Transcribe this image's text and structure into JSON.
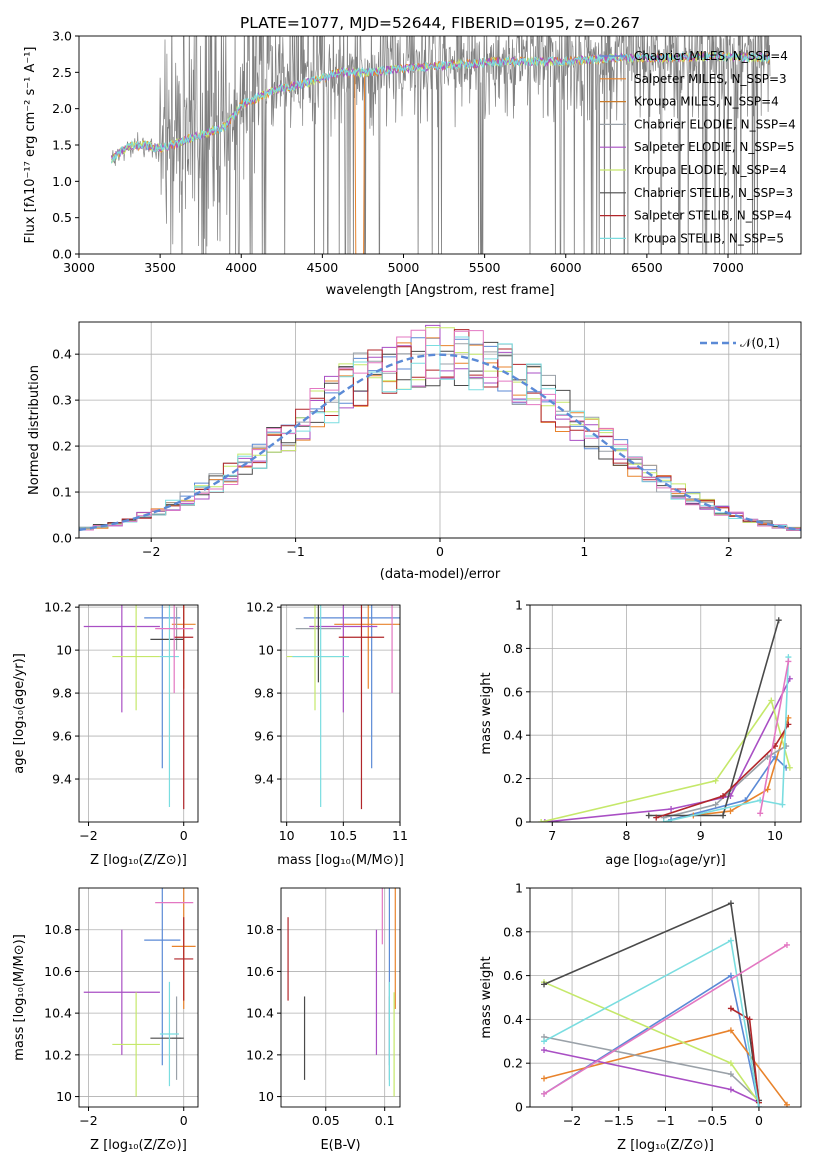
{
  "colors": {
    "chabrier_miles": "#5b8ad6",
    "salpeter_miles": "#e8832c",
    "kroupa_miles": "#c87a2a",
    "chabrier_elodie": "#9aa1a8",
    "salpeter_elodie": "#a94fc4",
    "kroupa_elodie": "#c5e86a",
    "chabrier_stelib": "#4a4a4a",
    "salpeter_stelib": "#b1262a",
    "kroupa_stelib": "#7adde0",
    "gauss": "#5b8ad6",
    "pink": "#e377c2",
    "spectrum": "#7f7f7f",
    "grid": "#b0b0b0"
  },
  "chart_data": [
    {
      "type": "line",
      "title": "PLATE=1077, MJD=52644, FIBERID=0195, z=0.267",
      "xlabel": "wavelength [Angstrom, rest frame]",
      "ylabel": "Flux [fλ10⁻¹⁷ erg cm⁻² s⁻¹ A⁻¹]",
      "xlim": [
        3000,
        7450
      ],
      "ylim": [
        0,
        3.0
      ],
      "xticks": [
        3000,
        3500,
        4000,
        4500,
        5000,
        5500,
        6000,
        6500,
        7000
      ],
      "yticks": [
        0.0,
        0.5,
        1.0,
        1.5,
        2.0,
        2.5,
        3.0
      ],
      "grid": false,
      "legend_position": "top-right",
      "series": [
        {
          "name": "Chabrier MILES, N_SSP=4"
        },
        {
          "name": "Salpeter MILES, N_SSP=3"
        },
        {
          "name": "Kroupa MILES, N_SSP=4"
        },
        {
          "name": "Chabrier ELODIE, N_SSP=4"
        },
        {
          "name": "Salpeter ELODIE, N_SSP=5"
        },
        {
          "name": "Kroupa ELODIE, N_SSP=4"
        },
        {
          "name": "Chabrier STELIB, N_SSP=3"
        },
        {
          "name": "Salpeter STELIB, N_SSP=4"
        },
        {
          "name": "Kroupa STELIB, N_SSP=5"
        }
      ],
      "continuum": {
        "x": [
          3200,
          3300,
          3400,
          3500,
          3700,
          3900,
          4000,
          4200,
          4400,
          4600,
          4800,
          5000,
          5300,
          5600,
          6000,
          6300,
          6600,
          6900,
          7250
        ],
        "y": [
          1.3,
          1.48,
          1.5,
          1.45,
          1.6,
          1.75,
          2.05,
          2.25,
          2.35,
          2.5,
          2.5,
          2.55,
          2.6,
          2.65,
          2.65,
          2.7,
          2.7,
          2.72,
          2.7
        ]
      }
    },
    {
      "type": "line",
      "xlabel": "(data-model)/error",
      "ylabel": "Normed distribution",
      "xlim": [
        -2.5,
        2.5
      ],
      "ylim": [
        0,
        0.47
      ],
      "xticks": [
        -2,
        -1,
        0,
        1,
        2
      ],
      "yticks": [
        0.0,
        0.1,
        0.2,
        0.3,
        0.4
      ],
      "grid": true,
      "legend_position": "top-right",
      "gauss_label": "𝒩(0,1)",
      "bin_width": 0.1
    },
    {
      "type": "scatter",
      "xlabel": "Z [log₁₀(Z/Z⊙)]",
      "ylabel": "age  [log₁₀(age/yr)]",
      "xlim": [
        -2.2,
        0.3
      ],
      "ylim": [
        9.2,
        10.21
      ],
      "xticks": [
        -2,
        0
      ],
      "yticks": [
        9.4,
        9.6,
        9.8,
        10.0,
        10.2
      ],
      "grid": true
    },
    {
      "type": "scatter",
      "xlabel": "mass [log₁₀(M/M⊙)]",
      "xlim": [
        9.95,
        11.0
      ],
      "ylim": [
        9.2,
        10.21
      ],
      "xticks": [
        10.0,
        10.5,
        11.0
      ],
      "yticks": [
        9.4,
        9.6,
        9.8,
        10.0,
        10.2
      ],
      "grid": true
    },
    {
      "type": "line",
      "xlabel": "age  [log₁₀(age/yr)]",
      "ylabel": "mass weight",
      "xlim": [
        6.7,
        10.35
      ],
      "ylim": [
        0,
        1.0
      ],
      "xticks": [
        7,
        8,
        9,
        10
      ],
      "yticks": [
        0.0,
        0.2,
        0.4,
        0.6,
        0.8,
        1.0
      ],
      "grid": true
    },
    {
      "type": "scatter",
      "xlabel": "Z [log₁₀(Z/Z⊙)]",
      "ylabel": "mass [log₁₀(M/M⊙)]",
      "xlim": [
        -2.2,
        0.3
      ],
      "ylim": [
        9.95,
        11.0
      ],
      "xticks": [
        -2,
        0
      ],
      "yticks": [
        10.0,
        10.2,
        10.4,
        10.6,
        10.8
      ],
      "grid": true
    },
    {
      "type": "scatter",
      "xlabel": "E(B-V)",
      "xlim": [
        0.012,
        0.113
      ],
      "ylim": [
        9.95,
        11.0
      ],
      "xticks": [
        0.05,
        0.1
      ],
      "yticks": [
        10.0,
        10.2,
        10.4,
        10.6,
        10.8
      ],
      "grid": true
    },
    {
      "type": "line",
      "xlabel": "Z [log₁₀(Z/Z⊙)]",
      "ylabel": "mass weight",
      "xlim": [
        -2.45,
        0.45
      ],
      "ylim": [
        0,
        1.0
      ],
      "xticks": [
        -2.0,
        -1.5,
        -1.0,
        -0.5,
        0.0
      ],
      "yticks": [
        0.0,
        0.2,
        0.4,
        0.6,
        0.8,
        1.0
      ],
      "grid": true
    }
  ],
  "fits": [
    {
      "color": "chabrier_miles",
      "Z": -0.45,
      "Zerr": 0.38,
      "age": 10.15,
      "ageErr": 0.7,
      "mass": 10.75,
      "massErr": 0.6,
      "ebv": 0.104,
      "ebvErr": 0.0,
      "wz": [
        -2.3,
        -0.3,
        0.0
      ],
      "wv": [
        0.06,
        0.6,
        0.0
      ],
      "wa": [
        8.6,
        9.6,
        10.0,
        10.15
      ],
      "wvv": [
        0.01,
        0.1,
        0.3,
        0.25
      ]
    },
    {
      "color": "salpeter_miles",
      "Z": 0.0,
      "Zerr": 0.25,
      "age": 10.12,
      "ageErr": 0.3,
      "mass": 10.72,
      "massErr": 0.3,
      "ebv": 0.109,
      "ebvErr": 0.0,
      "wz": [
        -2.3,
        -0.3,
        0.3
      ],
      "wv": [
        0.13,
        0.35,
        0.01
      ],
      "wa": [
        8.9,
        9.4,
        9.9,
        10.18
      ],
      "wvv": [
        0.03,
        0.05,
        0.15,
        0.48
      ]
    },
    {
      "color": "chabrier_elodie",
      "Z": -0.15,
      "Zerr": 0.1,
      "age": 10.1,
      "ageErr": 0.1,
      "mass": 10.28,
      "massErr": 0.2,
      "ebv": 0.104,
      "ebvErr": 0.0,
      "wz": [
        -2.3,
        -0.3,
        0.0
      ],
      "wv": [
        0.32,
        0.15,
        0.03
      ],
      "wa": [
        8.5,
        9.2,
        9.9,
        10.15
      ],
      "wvv": [
        0.02,
        0.08,
        0.3,
        0.35
      ]
    },
    {
      "color": "salpeter_elodie",
      "Z": -1.3,
      "Zerr": 0.8,
      "age": 10.11,
      "ageErr": 0.4,
      "mass": 10.5,
      "massErr": 0.3,
      "ebv": 0.093,
      "ebvErr": 0.0,
      "wz": [
        -2.3,
        -0.3,
        0.0
      ],
      "wv": [
        0.26,
        0.08,
        0.02
      ],
      "wa": [
        6.9,
        8.6,
        9.4,
        10.2
      ],
      "wvv": [
        0.0,
        0.06,
        0.12,
        0.66
      ]
    },
    {
      "color": "kroupa_elodie",
      "Z": -1.0,
      "Zerr": 0.5,
      "age": 9.97,
      "ageErr": 0.25,
      "mass": 10.25,
      "massErr": 0.25,
      "ebv": 0.108,
      "ebvErr": 0.0,
      "wz": [
        -2.3,
        -0.3,
        0.0
      ],
      "wv": [
        0.57,
        0.2,
        0.02
      ],
      "wa": [
        6.85,
        9.2,
        9.95,
        10.2
      ],
      "wvv": [
        0.0,
        0.19,
        0.56,
        0.25
      ]
    },
    {
      "color": "chabrier_stelib",
      "Z": -0.35,
      "Zerr": 0.35,
      "age": 10.05,
      "ageErr": 0.0,
      "mass": 10.28,
      "massErr": 0.0,
      "ebv": 0.032,
      "ebvErr": 0.0,
      "wz": [
        -2.3,
        -0.3,
        0.0
      ],
      "wv": [
        0.56,
        0.93,
        0.03
      ],
      "wa": [
        8.3,
        9.3,
        10.05
      ],
      "wvv": [
        0.03,
        0.03,
        0.93
      ]
    },
    {
      "color": "salpeter_stelib",
      "Z": 0.0,
      "Zerr": 0.2,
      "age": 10.06,
      "ageErr": 0.8,
      "mass": 10.66,
      "massErr": 0.2,
      "ebv": 0.018,
      "ebvErr": 0.0,
      "wz": [
        -0.3,
        -0.1,
        0.0
      ],
      "wv": [
        0.45,
        0.4,
        0.02
      ],
      "wa": [
        8.4,
        9.3,
        10.0,
        10.18
      ],
      "wvv": [
        0.02,
        0.12,
        0.35,
        0.45
      ]
    },
    {
      "color": "kroupa_stelib",
      "Z": -0.3,
      "Zerr": 0.2,
      "age": 9.97,
      "ageErr": 0.7,
      "mass": 10.3,
      "massErr": 0.25,
      "ebv": 0.104,
      "ebvErr": 0.0,
      "wz": [
        -2.3,
        -0.3,
        0.0
      ],
      "wv": [
        0.3,
        0.76,
        0.0
      ],
      "wa": [
        8.5,
        9.8,
        10.1,
        10.18
      ],
      "wvv": [
        0.0,
        0.1,
        0.08,
        0.76
      ]
    },
    {
      "color": "pink",
      "Z": -0.2,
      "Zerr": 0.4,
      "age": 10.1,
      "ageErr": 0.3,
      "mass": 10.93,
      "massErr": 0.0,
      "ebv": 0.098,
      "ebvErr": 0.0,
      "wz": [
        -2.3,
        0.3
      ],
      "wv": [
        0.06,
        0.74
      ],
      "wa": [
        9.8,
        10.18
      ],
      "wvv": [
        0.04,
        0.74
      ]
    }
  ]
}
